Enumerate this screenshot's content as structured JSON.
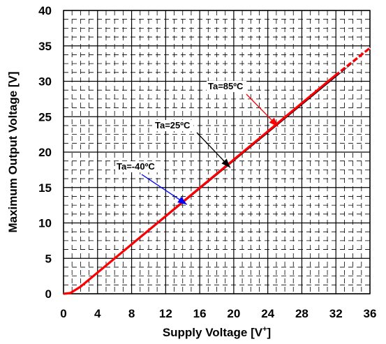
{
  "chart_data": {
    "type": "line",
    "title": "",
    "xlabel": "Supply Voltage [V",
    "xlabel_sup": "+",
    "xlabel_end": "]",
    "ylabel": "Maximum Output Voltage [V]",
    "xlim": [
      0,
      36
    ],
    "ylim": [
      0,
      40
    ],
    "x_ticks": [
      0,
      4,
      8,
      12,
      16,
      20,
      24,
      28,
      32,
      36
    ],
    "y_ticks": [
      0,
      5,
      10,
      15,
      20,
      25,
      30,
      35,
      40
    ],
    "grid": true,
    "series": [
      {
        "name": "Ta=-40ºC",
        "color": "#0000ff",
        "x": [
          0,
          0.8,
          2,
          36
        ],
        "y": [
          0,
          0.1,
          1.0,
          34.7
        ]
      },
      {
        "name": "Ta=25ºC",
        "color": "#000000",
        "x": [
          0,
          0.8,
          2,
          36
        ],
        "y": [
          0,
          0.1,
          1.0,
          34.7
        ]
      },
      {
        "name": "Ta=85ºC",
        "color": "#ff0000",
        "x": [
          0,
          0.8,
          2,
          32,
          36
        ],
        "y": [
          0,
          0.1,
          1.0,
          30.9,
          34.7
        ]
      }
    ],
    "annotations": [
      {
        "text": "Ta=85ºC",
        "color": "#ff0000",
        "arrow_to": [
          25.2,
          23.6
        ]
      },
      {
        "text": "Ta=25ºC",
        "color": "#000000",
        "arrow_to": [
          19.6,
          17.8
        ]
      },
      {
        "text": "Ta=-40ºC",
        "color": "#0000ff",
        "arrow_to": [
          14.5,
          12.6
        ]
      }
    ]
  }
}
